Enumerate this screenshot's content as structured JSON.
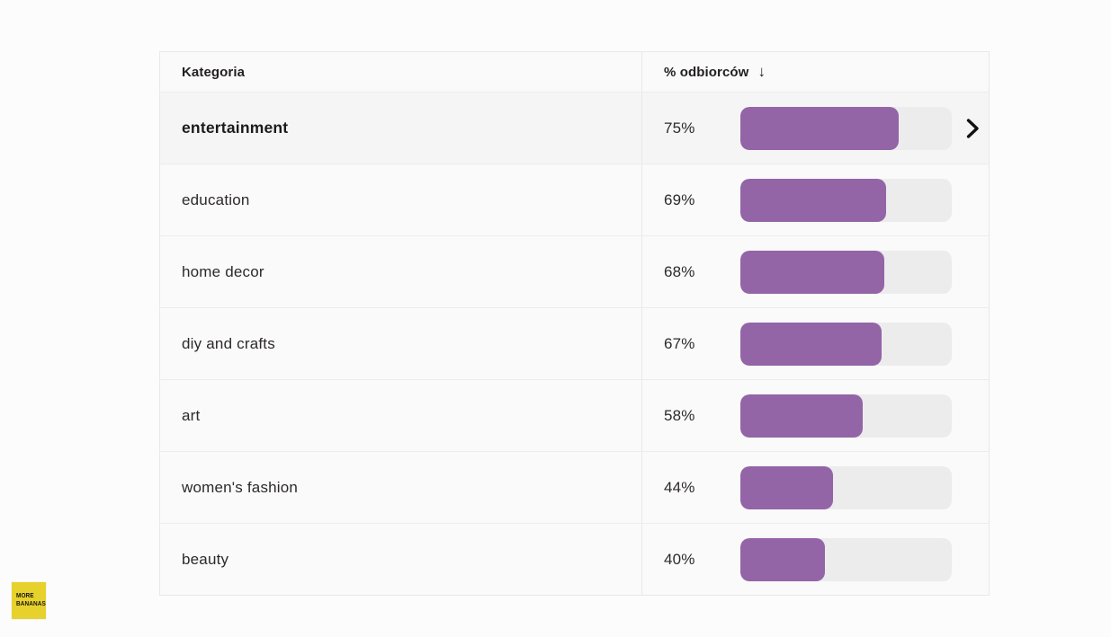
{
  "table": {
    "header": {
      "category_label": "Kategoria",
      "value_label": "% odbiorców",
      "sort_arrow": "↓",
      "sort_icon": "arrow-down-icon"
    },
    "rows": [
      {
        "category": "entertainment",
        "value": "75%",
        "pct": 75,
        "highlighted": true,
        "has_chevron": true
      },
      {
        "category": "education",
        "value": "69%",
        "pct": 69,
        "highlighted": false,
        "has_chevron": false
      },
      {
        "category": "home decor",
        "value": "68%",
        "pct": 68,
        "highlighted": false,
        "has_chevron": false
      },
      {
        "category": "diy and crafts",
        "value": "67%",
        "pct": 67,
        "highlighted": false,
        "has_chevron": false
      },
      {
        "category": "art",
        "value": "58%",
        "pct": 58,
        "highlighted": false,
        "has_chevron": false
      },
      {
        "category": "women's fashion",
        "value": "44%",
        "pct": 44,
        "highlighted": false,
        "has_chevron": false
      },
      {
        "category": "beauty",
        "value": "40%",
        "pct": 40,
        "highlighted": false,
        "has_chevron": false
      }
    ],
    "colors": {
      "bar_fill": "#9365a7",
      "bar_track": "#ececec",
      "row_highlight": "#f6f5f5",
      "border": "#e9e7e7",
      "page_background": "#fdfcfc"
    }
  },
  "logo": {
    "line1": "MORE",
    "line2": "BANANAS",
    "background": "#e7d12d"
  },
  "chart_data": {
    "type": "bar",
    "orientation": "horizontal",
    "categories": [
      "entertainment",
      "education",
      "home decor",
      "diy and crafts",
      "art",
      "women's fashion",
      "beauty"
    ],
    "values": [
      75,
      69,
      68,
      67,
      58,
      44,
      40
    ],
    "value_labels": [
      "75%",
      "69%",
      "68%",
      "67%",
      "58%",
      "44%",
      "40%"
    ],
    "title": "",
    "xlabel": "% odbiorców",
    "ylabel": "Kategoria",
    "xlim": [
      0,
      100
    ],
    "sort": "descending",
    "legend": false,
    "grid": false,
    "bar_color": "#9365a7",
    "track_color": "#ececec"
  }
}
